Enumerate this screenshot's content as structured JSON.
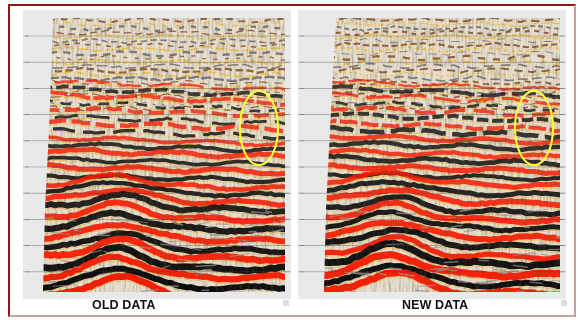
{
  "panels": [
    {
      "caption": "OLD DATA",
      "highlight_color": "#ffff3c"
    },
    {
      "caption": "NEW DATA",
      "highlight_color": "#ffff3c"
    }
  ],
  "colors": {
    "frame_border": "#8b1a1a",
    "background": "#e9e9e9",
    "reflector_red": "#ff1a00",
    "reflector_black": "#080808",
    "reflector_yellow": "#f2c230",
    "grid_line": "#3c3c3c"
  }
}
